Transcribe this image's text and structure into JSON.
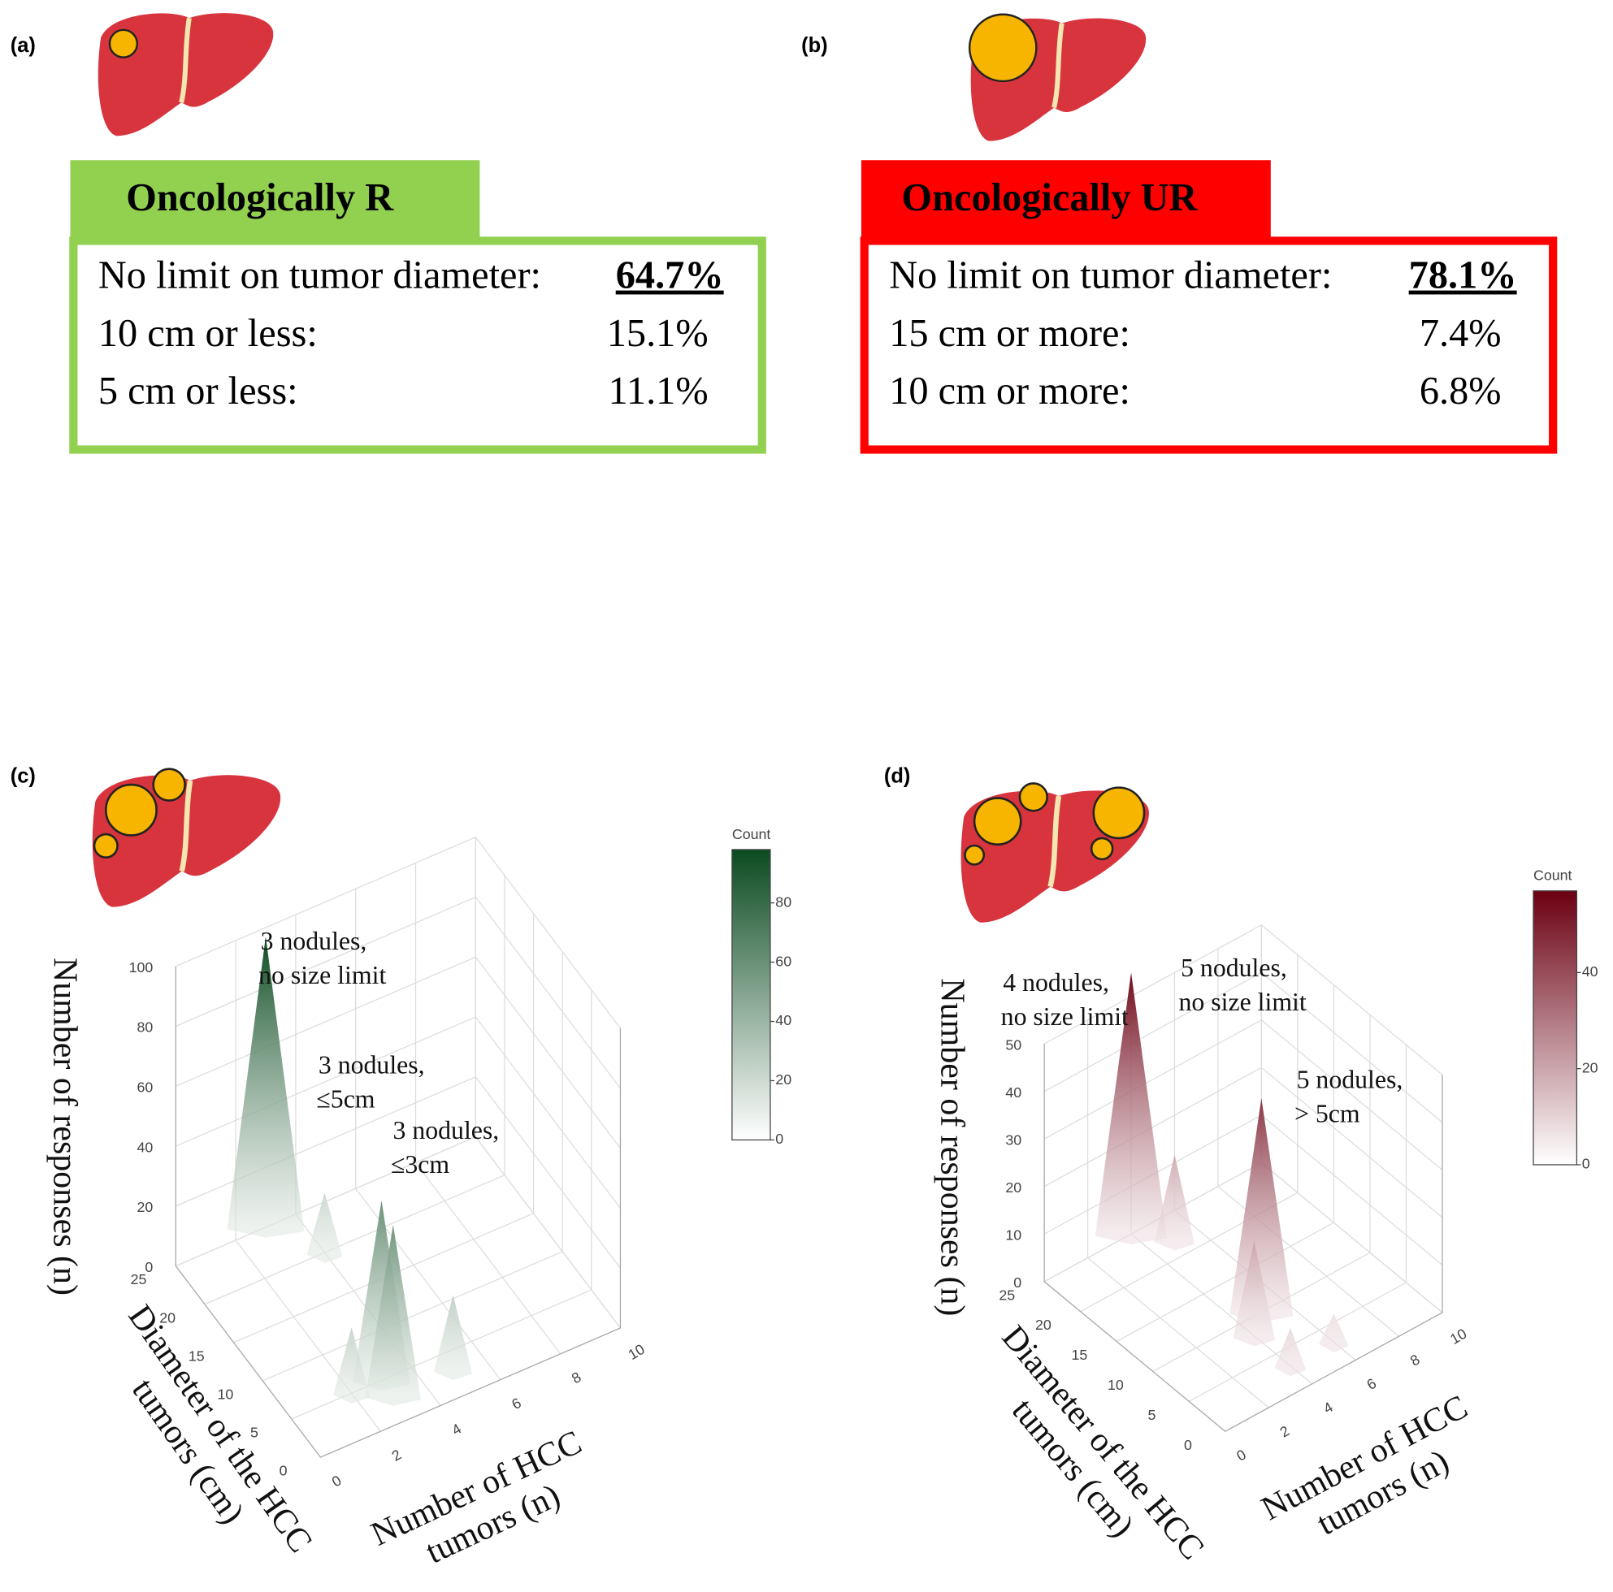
{
  "panels": [
    {
      "label": "(a)",
      "header": "Oncologically R",
      "rows": [
        {
          "text": "No limit on tumor diameter:",
          "value": "64.7%"
        },
        {
          "text": "10 cm or less:",
          "value": "15.1%"
        },
        {
          "text": "5 cm or less:",
          "value": "11.1%"
        }
      ]
    },
    {
      "label": "(b)",
      "header": "Oncologically UR",
      "rows": [
        {
          "text": "No limit on tumor diameter:",
          "value": "78.1%"
        },
        {
          "text": "15 cm or more:",
          "value": "7.4%"
        },
        {
          "text": "10 cm or more:",
          "value": "6.8%"
        }
      ]
    }
  ],
  "chart_data": [
    {
      "type": "surface3d",
      "label": "(c)",
      "x_label": [
        "Number of HCC",
        "tumors (n)"
      ],
      "y_label": [
        "Diameter of the HCC",
        "tumors (cm)"
      ],
      "z_label": "Number of responses (n)",
      "xlim": [
        0,
        10
      ],
      "xticks": [
        0,
        2,
        4,
        6,
        8,
        10
      ],
      "ylim": [
        0,
        25
      ],
      "yticks": [
        0,
        5,
        10,
        15,
        20,
        25
      ],
      "zlim": [
        0,
        100
      ],
      "zticks": [
        0,
        20,
        40,
        60,
        80,
        100
      ],
      "colors": [
        "#ffffff",
        "#0b4a20"
      ],
      "colorbar": {
        "title": "Count",
        "clim": [
          0,
          98
        ],
        "ticks": [
          0,
          20,
          40,
          60,
          80
        ]
      },
      "peaks": {
        "x": [
          3,
          4,
          3,
          2,
          3,
          5
        ],
        "y": [
          25,
          20,
          5,
          5,
          3,
          3
        ],
        "z": [
          97,
          20,
          60,
          22,
          57,
          25
        ]
      },
      "annotations": [
        [
          "3 nodules,",
          "no size limit"
        ],
        [
          "3 nodules,",
          "≤5cm"
        ],
        [
          "3 nodules,",
          "≤3cm"
        ]
      ]
    },
    {
      "type": "surface3d",
      "label": "(d)",
      "x_label": [
        "Number of HCC",
        "tumors (n)"
      ],
      "y_label": [
        "Diameter of the HCC",
        "tumors (cm)"
      ],
      "z_label": "Number of responses (n)",
      "xlim": [
        0,
        10
      ],
      "xticks": [
        0,
        2,
        4,
        6,
        8,
        10
      ],
      "ylim": [
        0,
        25
      ],
      "yticks": [
        0,
        5,
        10,
        15,
        20,
        25
      ],
      "zlim": [
        0,
        50
      ],
      "zticks": [
        0,
        10,
        20,
        30,
        40,
        50
      ],
      "colors": [
        "#ffffff",
        "#6b0012"
      ],
      "colorbar": {
        "title": "Count",
        "clim": [
          0,
          57
        ],
        "ticks": [
          0,
          20,
          40
        ]
      },
      "peaks": {
        "x": [
          4,
          5,
          4,
          5,
          6,
          4
        ],
        "y": [
          25,
          22,
          8,
          10,
          3,
          3
        ],
        "z": [
          55,
          18,
          20,
          45,
          6,
          8
        ]
      },
      "annotations": [
        [
          "4 nodules,",
          "no size limit"
        ],
        [
          "5 nodules,",
          "no size limit"
        ],
        [
          "5 nodules,",
          "> 5cm"
        ]
      ]
    }
  ]
}
